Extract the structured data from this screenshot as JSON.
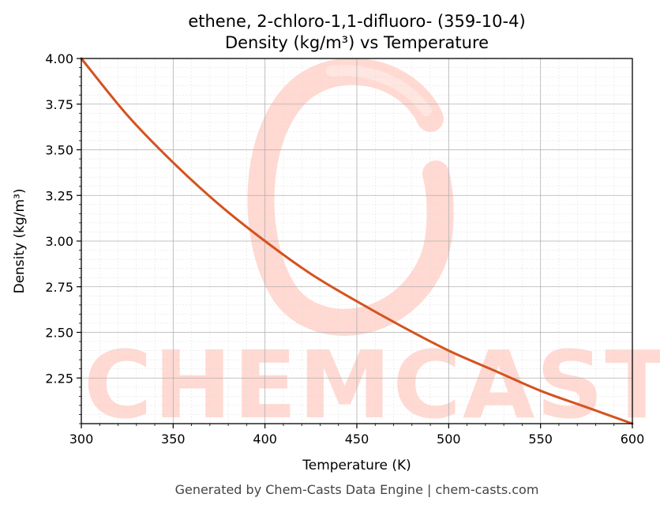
{
  "chart_data": {
    "type": "line",
    "title": "ethene, 2-chloro-1,1-difluoro- (359-10-4)",
    "subtitle": "Density (kg/m³) vs Temperature",
    "xlabel": "Temperature (K)",
    "ylabel": "Density (kg/m³)",
    "xlim": [
      300,
      600
    ],
    "ylim": [
      2.0,
      4.0
    ],
    "x_ticks": [
      "300",
      "350",
      "400",
      "450",
      "500",
      "550",
      "600"
    ],
    "y_ticks": [
      "2.25",
      "2.50",
      "2.75",
      "3.00",
      "3.25",
      "3.50",
      "3.75",
      "4.00"
    ],
    "grid": true,
    "series": [
      {
        "color": "#d4531f",
        "x": [
          300,
          325,
          350,
          375,
          400,
          425,
          450,
          475,
          500,
          525,
          550,
          575,
          600
        ],
        "y": [
          4.0,
          3.69,
          3.43,
          3.2,
          3.0,
          2.82,
          2.67,
          2.53,
          2.4,
          2.29,
          2.18,
          2.09,
          2.0
        ]
      }
    ]
  },
  "watermark": {
    "text": "CHEMCASTS",
    "color": "#ffd9d2"
  },
  "footer": "Generated by Chem-Casts Data Engine | chem-casts.com"
}
